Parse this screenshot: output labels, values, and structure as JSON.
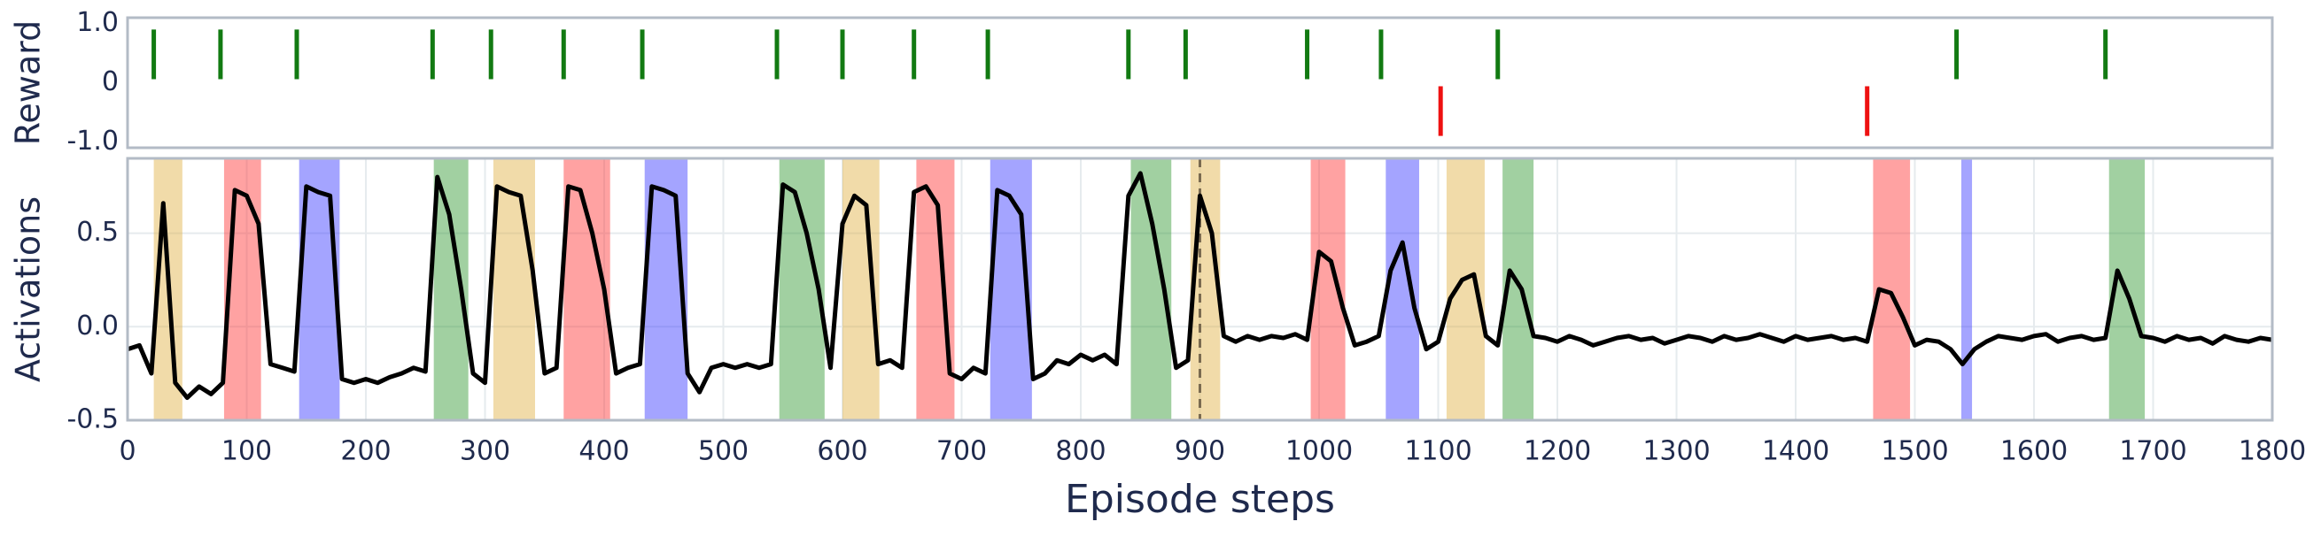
{
  "chart_data": [
    {
      "type": "event",
      "ylabel": "Reward",
      "xlim": [
        0,
        1800
      ],
      "ylim": [
        -1.1,
        1.1
      ],
      "yticks": [
        {
          "value": 1,
          "label": "1.0"
        },
        0,
        {
          "value": -1,
          "label": "-1.0"
        }
      ],
      "x": [
        22,
        78,
        142,
        256,
        305,
        366,
        432,
        545,
        600,
        660,
        722,
        840,
        888,
        990,
        1052,
        1102,
        1150,
        1460,
        1535,
        1660
      ],
      "values": [
        1,
        1,
        1,
        1,
        1,
        1,
        1,
        1,
        1,
        1,
        1,
        1,
        1,
        1,
        1,
        -1,
        1,
        -1,
        1,
        1
      ],
      "color": "#127a12",
      "negative_color": "#ee1111"
    },
    {
      "type": "line",
      "ylabel": "Activations",
      "xlabel": "Episode steps",
      "xlim": [
        0,
        1800
      ],
      "ylim": [
        -0.5,
        0.9
      ],
      "xticks": [
        0,
        100,
        200,
        300,
        400,
        500,
        600,
        700,
        800,
        900,
        1000,
        1100,
        1200,
        1300,
        1400,
        1500,
        1600,
        1700,
        1800
      ],
      "yticks": [
        0.5,
        {
          "value": 0,
          "label": "0.0"
        },
        -0.5
      ],
      "grid": true,
      "color": "#000000",
      "spans": [
        {
          "start": 22,
          "end": 46,
          "color": "#e0b040"
        },
        {
          "start": 81,
          "end": 112,
          "color": "#ff3030"
        },
        {
          "start": 144,
          "end": 178,
          "color": "#3535ff"
        },
        {
          "start": 257,
          "end": 286,
          "color": "#2e962e"
        },
        {
          "start": 307,
          "end": 342,
          "color": "#e0b040"
        },
        {
          "start": 366,
          "end": 405,
          "color": "#ff3030"
        },
        {
          "start": 434,
          "end": 470,
          "color": "#3535ff"
        },
        {
          "start": 547,
          "end": 585,
          "color": "#2e962e"
        },
        {
          "start": 600,
          "end": 631,
          "color": "#e0b040"
        },
        {
          "start": 662,
          "end": 694,
          "color": "#ff3030"
        },
        {
          "start": 724,
          "end": 759,
          "color": "#3535ff"
        },
        {
          "start": 842,
          "end": 876,
          "color": "#2e962e"
        },
        {
          "start": 892,
          "end": 917,
          "color": "#e0b040"
        },
        {
          "start": 993,
          "end": 1022,
          "color": "#ff3030"
        },
        {
          "start": 1056,
          "end": 1084,
          "color": "#3535ff"
        },
        {
          "start": 1107,
          "end": 1139,
          "color": "#e0b040"
        },
        {
          "start": 1154,
          "end": 1180,
          "color": "#2e962e"
        },
        {
          "start": 1465,
          "end": 1496,
          "color": "#ff3030"
        },
        {
          "start": 1539,
          "end": 1548,
          "color": "#3535ff"
        },
        {
          "start": 1663,
          "end": 1693,
          "color": "#2e962e"
        }
      ],
      "vlines": [
        900
      ],
      "x": [
        0,
        10,
        20,
        30,
        40,
        50,
        60,
        70,
        80,
        90,
        100,
        110,
        120,
        130,
        140,
        150,
        160,
        170,
        180,
        190,
        200,
        210,
        220,
        230,
        240,
        250,
        260,
        270,
        280,
        290,
        300,
        310,
        320,
        330,
        340,
        350,
        360,
        370,
        380,
        390,
        400,
        410,
        420,
        430,
        440,
        450,
        460,
        470,
        480,
        490,
        500,
        510,
        520,
        530,
        540,
        550,
        560,
        570,
        580,
        590,
        600,
        610,
        620,
        630,
        640,
        650,
        660,
        670,
        680,
        690,
        700,
        710,
        720,
        730,
        740,
        750,
        760,
        770,
        780,
        790,
        800,
        810,
        820,
        830,
        840,
        850,
        860,
        870,
        880,
        890,
        900,
        910,
        920,
        930,
        940,
        950,
        960,
        970,
        980,
        990,
        1000,
        1010,
        1020,
        1030,
        1040,
        1050,
        1060,
        1070,
        1080,
        1090,
        1100,
        1110,
        1120,
        1130,
        1140,
        1150,
        1160,
        1170,
        1180,
        1190,
        1200,
        1210,
        1220,
        1230,
        1240,
        1250,
        1260,
        1270,
        1280,
        1290,
        1300,
        1310,
        1320,
        1330,
        1340,
        1350,
        1360,
        1370,
        1380,
        1390,
        1400,
        1410,
        1420,
        1430,
        1440,
        1450,
        1460,
        1470,
        1480,
        1490,
        1500,
        1510,
        1520,
        1530,
        1540,
        1550,
        1560,
        1570,
        1580,
        1590,
        1600,
        1610,
        1620,
        1630,
        1640,
        1650,
        1660,
        1670,
        1680,
        1690,
        1700,
        1710,
        1720,
        1730,
        1740,
        1750,
        1760,
        1770,
        1780,
        1790,
        1800
      ],
      "values": [
        -0.12,
        -0.1,
        -0.25,
        0.66,
        -0.3,
        -0.38,
        -0.32,
        -0.36,
        -0.3,
        0.73,
        0.7,
        0.55,
        -0.2,
        -0.22,
        -0.24,
        0.75,
        0.72,
        0.7,
        -0.28,
        -0.3,
        -0.28,
        -0.3,
        -0.27,
        -0.25,
        -0.22,
        -0.24,
        0.8,
        0.6,
        0.2,
        -0.25,
        -0.3,
        0.75,
        0.72,
        0.7,
        0.3,
        -0.25,
        -0.22,
        0.75,
        0.73,
        0.5,
        0.2,
        -0.25,
        -0.22,
        -0.2,
        0.75,
        0.73,
        0.7,
        -0.25,
        -0.35,
        -0.22,
        -0.2,
        -0.22,
        -0.2,
        -0.22,
        -0.2,
        0.76,
        0.72,
        0.5,
        0.2,
        -0.22,
        0.55,
        0.7,
        0.65,
        -0.2,
        -0.18,
        -0.22,
        0.72,
        0.75,
        0.65,
        -0.25,
        -0.28,
        -0.22,
        -0.25,
        0.73,
        0.7,
        0.6,
        -0.28,
        -0.25,
        -0.18,
        -0.2,
        -0.15,
        -0.18,
        -0.15,
        -0.2,
        0.7,
        0.82,
        0.55,
        0.2,
        -0.22,
        -0.18,
        0.7,
        0.5,
        -0.05,
        -0.08,
        -0.05,
        -0.07,
        -0.05,
        -0.06,
        -0.04,
        -0.07,
        0.4,
        0.35,
        0.1,
        -0.1,
        -0.08,
        -0.05,
        0.3,
        0.45,
        0.1,
        -0.12,
        -0.08,
        0.15,
        0.25,
        0.28,
        -0.05,
        -0.1,
        0.3,
        0.2,
        -0.05,
        -0.06,
        -0.08,
        -0.05,
        -0.07,
        -0.1,
        -0.08,
        -0.06,
        -0.05,
        -0.07,
        -0.06,
        -0.09,
        -0.07,
        -0.05,
        -0.06,
        -0.08,
        -0.05,
        -0.07,
        -0.06,
        -0.04,
        -0.06,
        -0.08,
        -0.05,
        -0.07,
        -0.06,
        -0.05,
        -0.07,
        -0.06,
        -0.08,
        0.2,
        0.18,
        0.05,
        -0.1,
        -0.07,
        -0.08,
        -0.12,
        -0.2,
        -0.12,
        -0.08,
        -0.05,
        -0.06,
        -0.07,
        -0.05,
        -0.04,
        -0.08,
        -0.06,
        -0.05,
        -0.07,
        -0.06,
        0.3,
        0.15,
        -0.05,
        -0.06,
        -0.08,
        -0.05,
        -0.07,
        -0.06,
        -0.09,
        -0.05,
        -0.07,
        -0.08,
        -0.06,
        -0.07
      ]
    }
  ]
}
